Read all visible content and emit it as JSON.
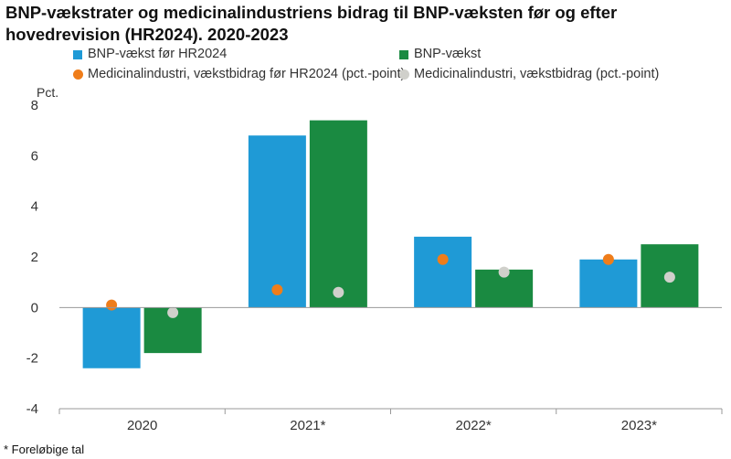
{
  "title": "BNP-vækstrater og medicinalindustriens bidrag til BNP-væksten før og efter hovedrevision (HR2024). 2020-2023",
  "footnote": "* Foreløbige tal",
  "colors": {
    "bnp_before": "#1f9ad6",
    "bnp_after": "#1a8a41",
    "med_before": "#ef7d1a",
    "med_after": "#d0d0cb",
    "axis": "#999999",
    "text": "#333333"
  },
  "legend": [
    {
      "label": "BNP-vækst før HR2024",
      "shape": "square",
      "color": "#1f9ad6"
    },
    {
      "label": "BNP-vækst",
      "shape": "square",
      "color": "#1a8a41"
    },
    {
      "label": "Medicinalindustri, vækstbidrag før HR2024 (pct.-point)",
      "shape": "dot",
      "color": "#ef7d1a"
    },
    {
      "label": "Medicinalindustri, vækstbidrag (pct.-point)",
      "shape": "dot",
      "color": "#d0d0cb"
    }
  ],
  "chart_data": {
    "type": "bar",
    "title": "BNP-vækstrater og medicinalindustriens bidrag til BNP-væksten før og efter hovedrevision (HR2024). 2020-2023",
    "ylabel": "Pct.",
    "xlabel": "",
    "ylim": [
      -4,
      8
    ],
    "yticks": [
      -4,
      -2,
      0,
      2,
      4,
      6,
      8
    ],
    "categories": [
      "2020",
      "2021*",
      "2022*",
      "2023*"
    ],
    "grid": false,
    "legend_position": "top",
    "series": [
      {
        "name": "BNP-vækst før HR2024",
        "kind": "bar",
        "values": [
          -2.4,
          6.8,
          2.8,
          1.9
        ]
      },
      {
        "name": "BNP-vækst",
        "kind": "bar",
        "values": [
          -1.8,
          7.4,
          1.5,
          2.5
        ]
      },
      {
        "name": "Medicinalindustri, vækstbidrag før HR2024 (pct.-point)",
        "kind": "dot",
        "values": [
          0.1,
          0.7,
          1.9,
          1.9
        ]
      },
      {
        "name": "Medicinalindustri, vækstbidrag (pct.-point)",
        "kind": "dot",
        "values": [
          -0.2,
          0.6,
          1.4,
          1.2
        ]
      }
    ]
  }
}
